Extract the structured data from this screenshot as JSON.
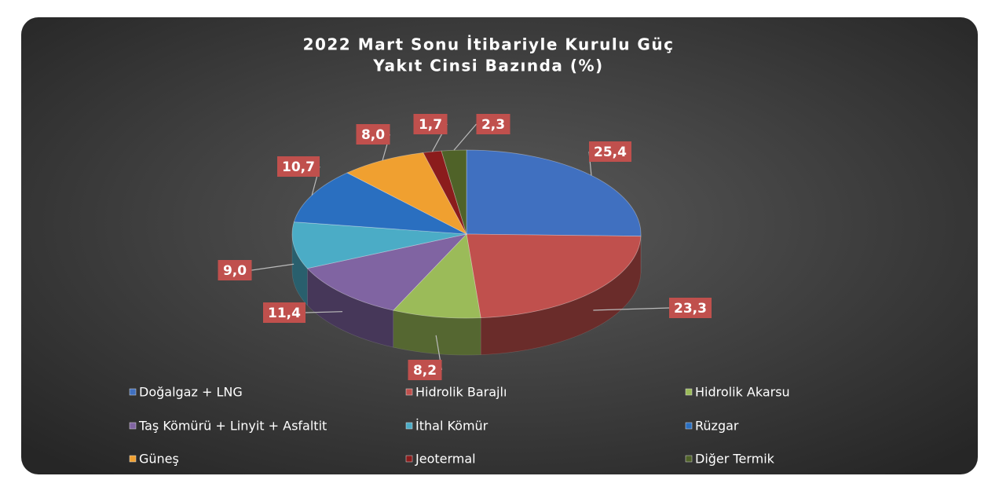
{
  "chart_data": {
    "type": "pie",
    "title": [
      "2022 Mart Sonu İtibariyle Kurulu Güç",
      "Yakıt Cinsi Bazında (%)"
    ],
    "categories": [
      "Doğalgaz + LNG",
      "Hidrolik Barajlı",
      "Hidrolik Akarsu",
      "Taş Kömürü + Linyit + Asfaltit",
      "İthal Kömür",
      "Rüzgar",
      "Güneş",
      "Jeotermal",
      "Diğer Termik"
    ],
    "values": [
      25.4,
      23.3,
      8.2,
      11.4,
      9.0,
      10.7,
      8.0,
      1.7,
      2.3
    ],
    "value_labels": [
      "25,4",
      "23,3",
      "8,2",
      "11,4",
      "9,0",
      "10,7",
      "8,0",
      "1,7",
      "2,3"
    ],
    "colors": [
      "#4070c0",
      "#c0504d",
      "#9bbb59",
      "#8064a2",
      "#4bacc6",
      "#2a6fc0",
      "#f0a030",
      "#8b1c1c",
      "#4f6228"
    ],
    "legend": "bottom"
  }
}
